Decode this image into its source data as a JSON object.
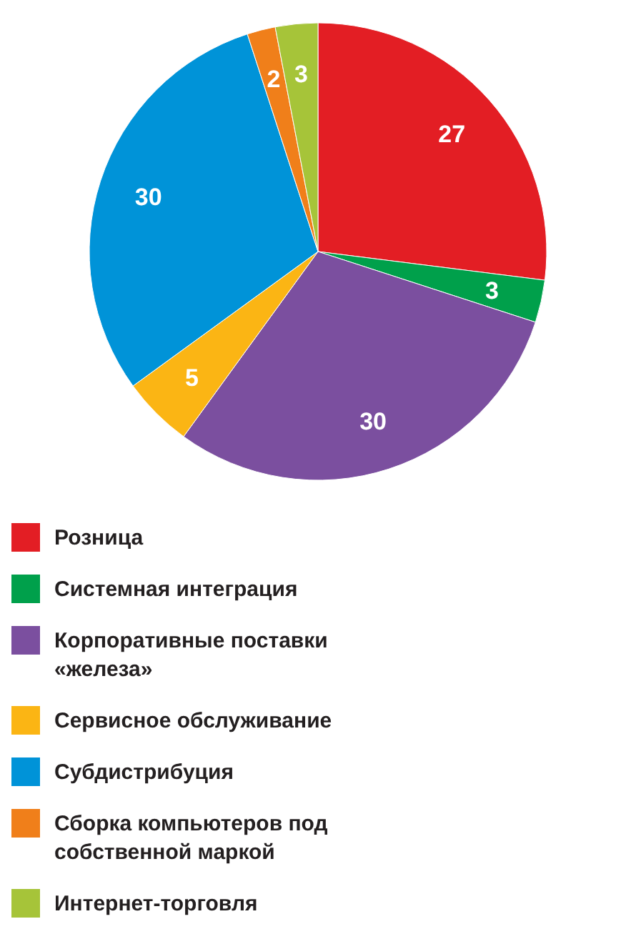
{
  "chart_data": {
    "type": "pie",
    "categories": [
      "Розница",
      "Системная интеграция",
      "Корпоративные поставки «железа»",
      "Сервисное обслуживание",
      "Субдистрибуция",
      "Сборка компьютеров под собственной маркой",
      "Интернет-торговля"
    ],
    "values": [
      27,
      3,
      30,
      5,
      30,
      2,
      3
    ],
    "colors": [
      "#e31e24",
      "#00a04b",
      "#7b4f9f",
      "#fbb514",
      "#0093d8",
      "#f07f1a",
      "#a6c439"
    ],
    "data_labels": true,
    "legend": "bottom"
  }
}
